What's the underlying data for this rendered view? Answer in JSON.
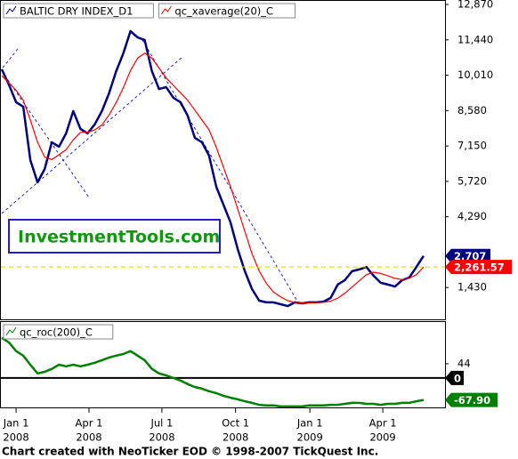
{
  "chart_data": [
    {
      "type": "line",
      "watermark": "InvestmentTools.com",
      "xlim": [
        0,
        62
      ],
      "ylim": [
        0,
        13050
      ],
      "yticks": [
        {
          "value": 12870,
          "label": "12,870"
        },
        {
          "value": 11440,
          "label": "11,440"
        },
        {
          "value": 10010,
          "label": "10,010"
        },
        {
          "value": 8580,
          "label": "8,580"
        },
        {
          "value": 7150,
          "label": "7,150"
        },
        {
          "value": 5720,
          "label": "5,720"
        },
        {
          "value": 4290,
          "label": "4,290"
        },
        {
          "value": 1430,
          "label": "1,430"
        }
      ],
      "series": [
        {
          "name": "BALTIC DRY INDEX_D1",
          "color": "#000080",
          "last_label": "2,707",
          "values": [
            10250,
            9630,
            8920,
            8740,
            6580,
            5680,
            6220,
            7300,
            7120,
            7660,
            8560,
            7840,
            7660,
            8020,
            8560,
            9280,
            10170,
            10890,
            11790,
            11540,
            11430,
            10170,
            9450,
            9530,
            9100,
            8920,
            8380,
            7480,
            7300,
            6760,
            5500,
            4780,
            4060,
            2980,
            2090,
            1370,
            900,
            830,
            830,
            755,
            680,
            830,
            790,
            830,
            830,
            860,
            1010,
            1550,
            1730,
            2090,
            2160,
            2260,
            1910,
            1620,
            1550,
            1470,
            1730,
            1830,
            2260,
            2707
          ]
        },
        {
          "name": "qc_xaverage(20)_C",
          "color": "#ff0000",
          "last_label": "2,261.57",
          "values": [
            9990,
            9700,
            9400,
            9000,
            8200,
            7300,
            6700,
            6600,
            6800,
            7000,
            7400,
            7700,
            7700,
            7800,
            8000,
            8400,
            8900,
            9500,
            10200,
            10700,
            10900,
            10700,
            10300,
            9900,
            9600,
            9300,
            9000,
            8600,
            8200,
            7800,
            7100,
            6300,
            5500,
            4600,
            3700,
            2800,
            2100,
            1600,
            1250,
            1050,
            900,
            830,
            800,
            810,
            820,
            830,
            880,
            1000,
            1200,
            1450,
            1700,
            1950,
            2050,
            2000,
            1900,
            1800,
            1750,
            1800,
            1950,
            2261.57
          ]
        }
      ]
    },
    {
      "type": "line",
      "xlim": [
        0,
        62
      ],
      "xticks": [
        {
          "value": 2,
          "label": "Jan 1",
          "year": "2008"
        },
        {
          "value": 12.2,
          "label": "Apr 1",
          "year": "2008"
        },
        {
          "value": 22.4,
          "label": "Jul 1",
          "year": "2008"
        },
        {
          "value": 32.7,
          "label": "Oct 1",
          "year": "2008"
        },
        {
          "value": 43.1,
          "label": "Jan 1",
          "year": "2009"
        },
        {
          "value": 53.3,
          "label": "Apr 1",
          "year": "2009"
        }
      ],
      "ylim": [
        -91,
        173
      ],
      "yticks": [
        44
      ],
      "reference_line": 0,
      "series": [
        {
          "name": "qc_roc(200)_C",
          "color": "#008000",
          "last_label": "-67.90",
          "values": [
            124,
            110,
            83,
            69,
            41,
            14,
            19,
            28,
            41,
            36,
            41,
            36,
            41,
            47,
            55,
            63,
            69,
            74,
            83,
            69,
            55,
            28,
            14,
            8,
            0,
            -8,
            -19,
            -28,
            -33,
            -41,
            -47,
            -55,
            -61,
            -66,
            -72,
            -77,
            -83,
            -85,
            -85,
            -88,
            -88,
            -88,
            -88,
            -85,
            -85,
            -85,
            -83,
            -83,
            -80,
            -77,
            -77,
            -80,
            -80,
            -83,
            -80,
            -80,
            -77,
            -77,
            -72,
            -67.9
          ]
        }
      ]
    }
  ],
  "footer": "Chart created with NeoTicker EOD © 1998-2007 TickQuest Inc."
}
